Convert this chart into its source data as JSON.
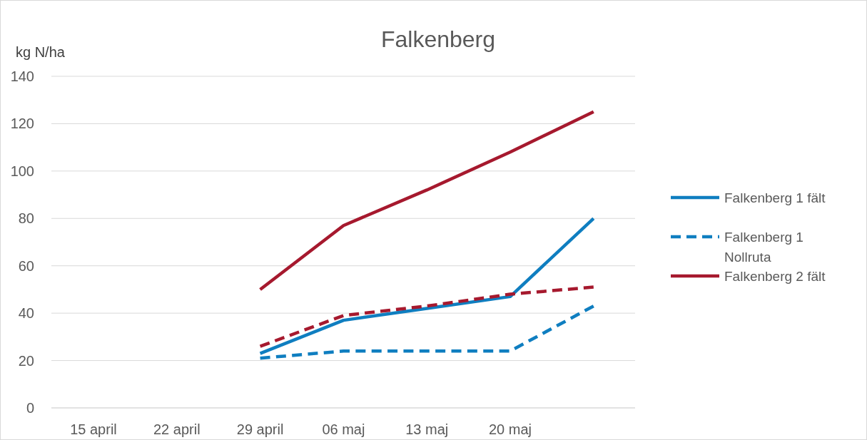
{
  "chart_data": {
    "type": "line",
    "title": "Falkenberg",
    "ylabel": "kg N/ha",
    "categories": [
      "15 april",
      "22 april",
      "29 april",
      "06 maj",
      "13 maj",
      "20 maj",
      null
    ],
    "series": [
      {
        "name": "Falkenberg 1 fält",
        "color": "#0f7ec0",
        "line_style": "solid",
        "values": [
          null,
          null,
          23,
          37,
          42,
          47,
          80
        ]
      },
      {
        "name": "Falkenberg 1 Nollruta",
        "color": "#0f7ec0",
        "line_style": "dashed",
        "values": [
          null,
          null,
          21,
          24,
          24,
          24,
          43
        ]
      },
      {
        "name": "Falkenberg 2 fält",
        "color": "#a6192e",
        "line_style": "solid",
        "values": [
          null,
          null,
          50,
          77,
          92,
          108,
          125
        ]
      },
      {
        "color": "#a6192e",
        "line_style": "dashed",
        "values": [
          null,
          null,
          26,
          39,
          43,
          48,
          51
        ]
      }
    ],
    "ylim": [
      0,
      140
    ],
    "yticks": [
      0,
      20,
      40,
      60,
      80,
      100,
      120,
      140
    ],
    "grid": "y",
    "legend": "right"
  }
}
